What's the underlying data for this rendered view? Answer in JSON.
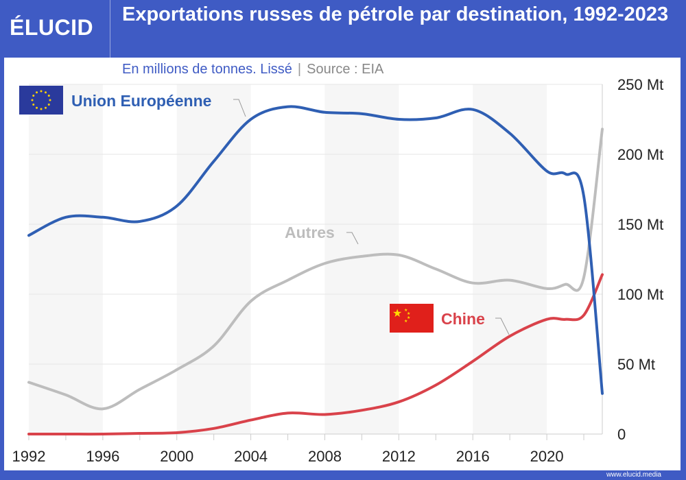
{
  "header": {
    "logo": "ÉLUCID",
    "title": "Exportations russes de pétrole par destination, 1992-2023"
  },
  "subtitle": {
    "text": "En millions de tonnes. Lissé",
    "separator": "|",
    "source": "Source : EIA"
  },
  "footer": {
    "url": "www.elucid.media"
  },
  "colors": {
    "frame": "#3f5bc4",
    "eu": "#2f5fb3",
    "autres": "#bdbdbd",
    "chine": "#d9424a",
    "band": "#f6f6f6"
  },
  "chart_data": {
    "type": "line",
    "title": "Exportations russes de pétrole par destination, 1992-2023",
    "subtitle": "En millions de tonnes. Lissé",
    "ylim": [
      0,
      250
    ],
    "xlim": [
      1992,
      2023
    ],
    "yticks": [
      0,
      50,
      100,
      150,
      200,
      250
    ],
    "ytick_labels": [
      "0",
      "50 Mt",
      "100 Mt",
      "150 Mt",
      "200 Mt",
      "250 Mt"
    ],
    "xtick_labels": [
      "1992",
      "1996",
      "2000",
      "2004",
      "2008",
      "2012",
      "2016",
      "2020"
    ],
    "grid": true,
    "x": [
      1992,
      1994,
      1996,
      1998,
      2000,
      2002,
      2004,
      2006,
      2008,
      2010,
      2012,
      2014,
      2016,
      2018,
      2020,
      2021,
      2022,
      2023
    ],
    "series": [
      {
        "name": "Union Européenne",
        "color": "#2f5fb3",
        "values": [
          142,
          155,
          155,
          152,
          163,
          195,
          225,
          234,
          230,
          229,
          225,
          226,
          232,
          215,
          188,
          186,
          170,
          29
        ]
      },
      {
        "name": "Autres",
        "color": "#bdbdbd",
        "values": [
          37,
          28,
          18,
          32,
          46,
          63,
          95,
          110,
          122,
          127,
          128,
          118,
          108,
          110,
          104,
          107,
          112,
          218
        ]
      },
      {
        "name": "Chine",
        "color": "#d9424a",
        "values": [
          0,
          0,
          0,
          0.5,
          1,
          4,
          10,
          15,
          14,
          17,
          23,
          35,
          52,
          70,
          82,
          82,
          85,
          114
        ]
      }
    ]
  }
}
